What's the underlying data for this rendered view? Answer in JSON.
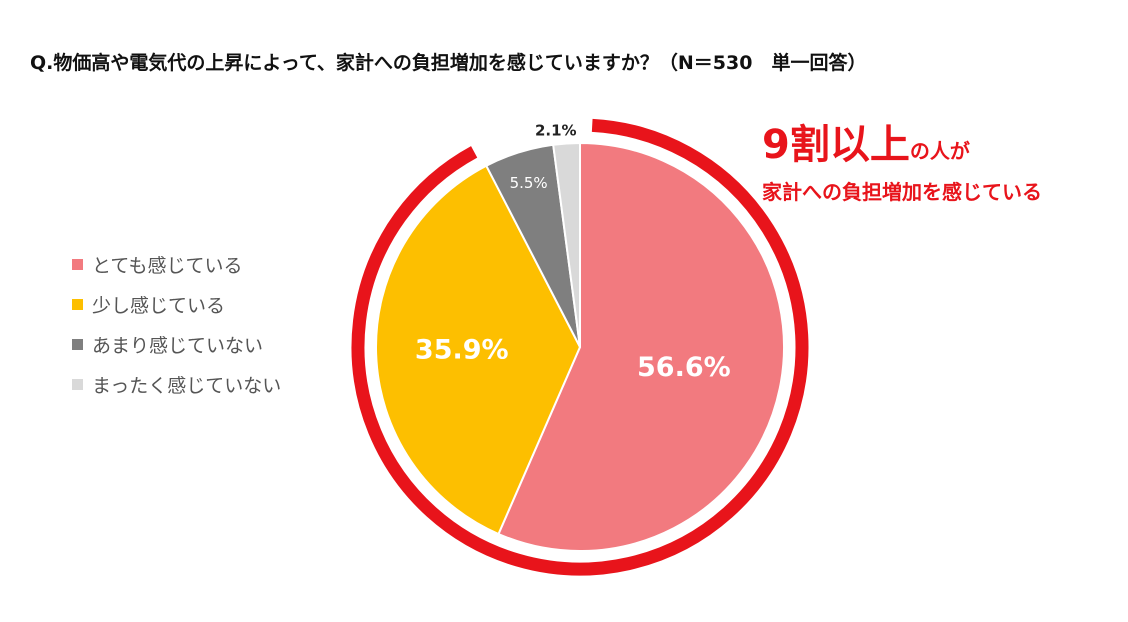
{
  "chart_data": {
    "type": "pie",
    "title": "Q.物価高や電気代の上昇によって、家計への負担増加を感じていますか？（N＝530　単一回答）",
    "slices": [
      {
        "label": "とても感じている",
        "value": 56.6,
        "display": "56.6%",
        "color": "#f27a7f",
        "text_color": "#ffffff"
      },
      {
        "label": "少し感じている",
        "value": 35.9,
        "display": "35.9%",
        "color": "#fdbf00",
        "text_color": "#ffffff"
      },
      {
        "label": "あまり感じていない",
        "value": 5.5,
        "display": "5.5%",
        "color": "#7f7f7f",
        "text_color": "#ffffff"
      },
      {
        "label": "まったく感じていない",
        "value": 2.1,
        "display": "2.1%",
        "color": "#d9d9d9",
        "text_color": "#222222"
      }
    ],
    "legend_position": "left",
    "callout": {
      "big": "9割以上",
      "small": "の人が",
      "line2": "家計への負担増加を感じている",
      "color": "#e8141b"
    }
  }
}
